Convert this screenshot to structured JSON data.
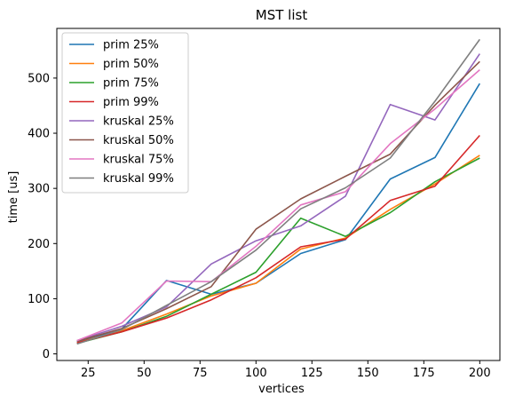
{
  "chart_data": {
    "type": "line",
    "title": "MST list",
    "xlabel": "vertices",
    "ylabel": "time [us]",
    "xlim": [
      11,
      209
    ],
    "ylim": [
      -12,
      590
    ],
    "xticks": [
      25,
      50,
      75,
      100,
      125,
      150,
      175,
      200
    ],
    "yticks": [
      0,
      100,
      200,
      300,
      400,
      500
    ],
    "x": [
      20,
      40,
      60,
      80,
      100,
      120,
      140,
      160,
      180,
      200
    ],
    "legend_position": "upper-left",
    "series": [
      {
        "name": "prim 25%",
        "color": "#1f77b4",
        "values": [
          22,
          45,
          133,
          108,
          128,
          182,
          207,
          317,
          356,
          490
        ]
      },
      {
        "name": "prim 50%",
        "color": "#ff7f0e",
        "values": [
          20,
          42,
          72,
          105,
          128,
          190,
          210,
          262,
          308,
          360
        ]
      },
      {
        "name": "prim 75%",
        "color": "#2ca02c",
        "values": [
          19,
          40,
          68,
          108,
          148,
          246,
          213,
          256,
          312,
          355
        ]
      },
      {
        "name": "prim 99%",
        "color": "#d62728",
        "values": [
          20,
          40,
          65,
          98,
          138,
          194,
          208,
          278,
          304,
          396
        ]
      },
      {
        "name": "kruskal 25%",
        "color": "#9467bd",
        "values": [
          24,
          50,
          85,
          163,
          205,
          232,
          286,
          452,
          424,
          544
        ]
      },
      {
        "name": "kruskal 50%",
        "color": "#8c564b",
        "values": [
          23,
          46,
          82,
          122,
          226,
          281,
          322,
          362,
          451,
          530
        ]
      },
      {
        "name": "kruskal 75%",
        "color": "#e377c2",
        "values": [
          24,
          56,
          132,
          131,
          195,
          270,
          294,
          381,
          444,
          515
        ]
      },
      {
        "name": "kruskal 99%",
        "color": "#7f7f7f",
        "values": [
          18,
          44,
          88,
          131,
          188,
          263,
          301,
          355,
          458,
          570
        ]
      }
    ]
  }
}
